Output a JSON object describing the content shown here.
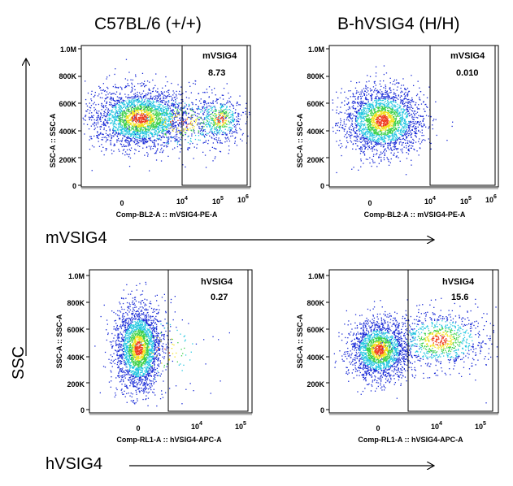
{
  "headers": {
    "left": "C57BL/6 (+/+)",
    "right": "B-hVSIG4 (H/H)"
  },
  "axis_labels": {
    "row1": "mVSIG4",
    "row2": "hVSIG4",
    "ssc": "SSC"
  },
  "colors": {
    "density_low": "#1a2bd6",
    "density_mid": "#25c7e0",
    "density_midhigh": "#3ed14a",
    "density_high": "#f2e21b",
    "density_peak": "#ef3a1d"
  },
  "chart_data": [
    {
      "type": "scatter",
      "id": "p1",
      "xlabel": "Comp-BL2-A :: mVSIG4-PE-A",
      "ylabel": "SSC-A :: SSC-A",
      "x_ticks": [
        "0",
        "10^4",
        "10^5",
        "10^6"
      ],
      "y_ticks": [
        "0",
        "200K",
        "400K",
        "600K",
        "800K",
        "1.0M"
      ],
      "gate": {
        "name": "mVSIG4",
        "value": "8.73"
      }
    },
    {
      "type": "scatter",
      "id": "p2",
      "xlabel": "Comp-BL2-A :: mVSIG4-PE-A",
      "ylabel": "SSC-A :: SSC-A",
      "x_ticks": [
        "0",
        "10^4",
        "10^5",
        "10^6"
      ],
      "y_ticks": [
        "0",
        "200K",
        "400K",
        "600K",
        "800K",
        "1.0M"
      ],
      "gate": {
        "name": "mVSIG4",
        "value": "0.010"
      }
    },
    {
      "type": "scatter",
      "id": "p3",
      "xlabel": "Comp-RL1-A :: hVSIG4-APC-A",
      "ylabel": "SSC-A :: SSC-A",
      "x_ticks": [
        "0",
        "10^4",
        "10^5"
      ],
      "y_ticks": [
        "0",
        "200K",
        "400K",
        "600K",
        "800K",
        "1.0M"
      ],
      "gate": {
        "name": "hVSIG4",
        "value": "0.27"
      }
    },
    {
      "type": "scatter",
      "id": "p4",
      "xlabel": "Comp-RL1-A :: hVSIG4-APC-A",
      "ylabel": "SSC-A :: SSC-A",
      "x_ticks": [
        "0",
        "10^4",
        "10^5"
      ],
      "y_ticks": [
        "0",
        "200K",
        "400K",
        "600K",
        "800K",
        "1.0M"
      ],
      "gate": {
        "name": "hVSIG4",
        "value": "15.6"
      }
    }
  ]
}
